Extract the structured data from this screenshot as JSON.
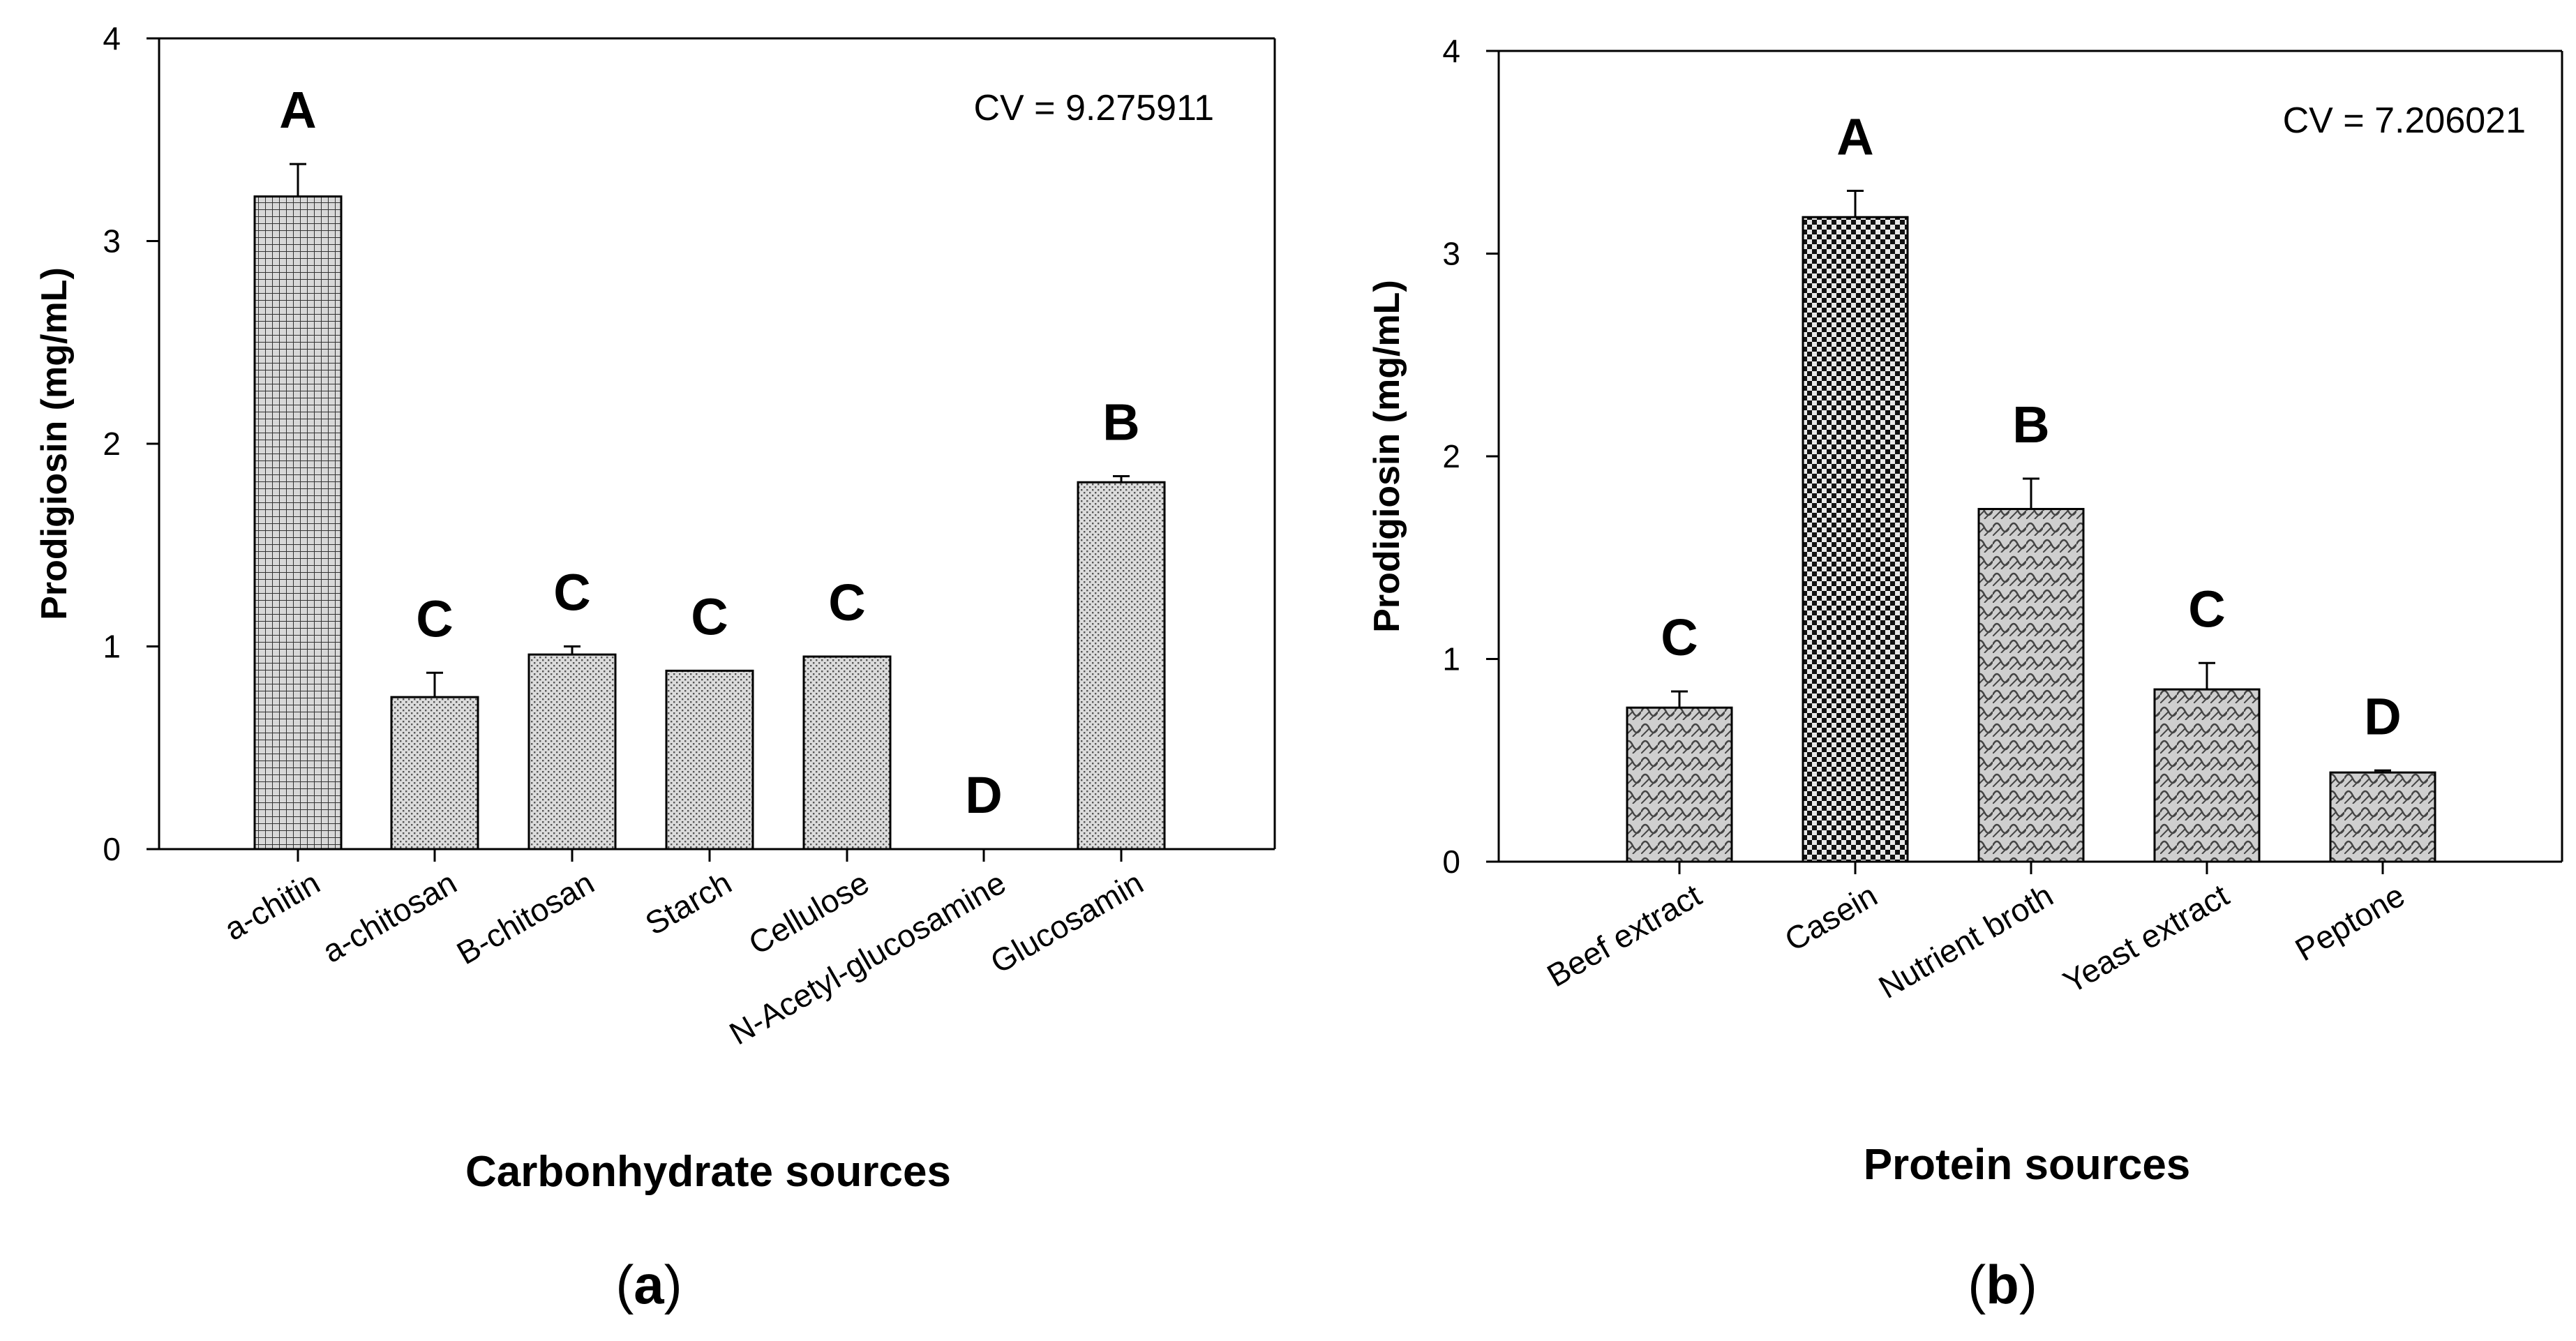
{
  "chart_data": [
    {
      "type": "bar",
      "panel_label_open": "(",
      "panel_label_letter": "a",
      "panel_label_close": ")",
      "title": "",
      "xlabel": "Carbonhydrate sources",
      "ylabel": "Prodigiosin (mg/mL)",
      "ylim": [
        0,
        4
      ],
      "yticks": [
        "0",
        "1",
        "2",
        "3",
        "4"
      ],
      "cv_label": "CV =  9.275911",
      "categories": [
        "a-chitin",
        "a-chitosan",
        "B-chitosan",
        "Starch",
        "Cellulose",
        "N-Acetyl-glucosamine",
        "Glucosamin"
      ],
      "values": [
        3.22,
        0.75,
        0.96,
        0.88,
        0.95,
        0.0,
        1.81
      ],
      "errors": [
        0.16,
        0.12,
        0.04,
        0.0,
        0.0,
        0.0,
        0.03
      ],
      "significance": [
        "A",
        "C",
        "C",
        "C",
        "C",
        "D",
        "B"
      ],
      "patterns": [
        "grid",
        "dots",
        "dots",
        "dots",
        "dots",
        "dots",
        "dots"
      ],
      "legend": "none"
    },
    {
      "type": "bar",
      "panel_label_open": "(",
      "panel_label_letter": "b",
      "panel_label_close": ")",
      "title": "",
      "xlabel": "Protein sources",
      "ylabel": "Prodigiosin (mg/mL)",
      "ylim": [
        0,
        4
      ],
      "yticks": [
        "0",
        "1",
        "2",
        "3",
        "4"
      ],
      "cv_label": "CV =  7.206021",
      "categories": [
        "Beef extract",
        "Casein",
        "Nutrient broth",
        "Yeast extract",
        "Peptone"
      ],
      "values": [
        0.76,
        3.18,
        1.74,
        0.85,
        0.44
      ],
      "errors": [
        0.08,
        0.13,
        0.15,
        0.13,
        0.01
      ],
      "significance": [
        "C",
        "A",
        "B",
        "C",
        "D"
      ],
      "patterns": [
        "weave",
        "checker",
        "weave",
        "weave",
        "weave"
      ],
      "legend": "none"
    }
  ]
}
